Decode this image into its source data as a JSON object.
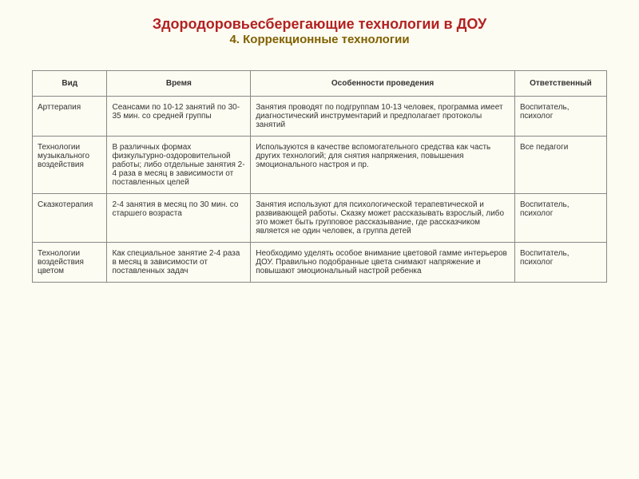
{
  "header": {
    "title": "Здородоровьесберегающие технологии в ДОУ",
    "subtitle": "4. Коррекционные технологии"
  },
  "table": {
    "columns": [
      "Вид",
      "Время",
      "Особенности проведения",
      "Ответственный"
    ],
    "rows": [
      {
        "vid": "Арттерапия",
        "time": "Сеансами по 10-12 занятий по 30-35 мин. со средней группы",
        "feat": "Занятия проводят по подгруппам 10-13 человек, программа имеет диагностический инструментарий и предполагает протоколы занятий",
        "resp": "Воспитатель, психолог"
      },
      {
        "vid": "Технологии музыкального воздействия",
        "time": "В различных формах физкультурно-оздоровительной работы; либо отдельные занятия 2-4 раза в месяц в зависимости от поставленных целей",
        "feat": "Используются в качестве вспомогательного средства как часть других технологий; для снятия напряжения, повышения эмоционального настроя и пр.",
        "resp": "Все педагоги"
      },
      {
        "vid": "Сказкотерапия",
        "time": "2-4 занятия в месяц по 30 мин. со старшего возраста",
        "feat": "Занятия используют для психологической терапевтической и развивающей работы. Сказку может рассказывать взрослый, либо это может быть групповое рассказывание, где рассказчиком является не один человек, а группа детей",
        "resp": "Воспитатель, психолог"
      },
      {
        "vid": "Технологии воздействия цветом",
        "time": "Как специальное занятие 2-4 раза в месяц в зависимости от поставленных задач",
        "feat": "Необходимо уделять особое внимание цветовой гамме интерьеров ДОУ. Правильно подобранные цвета снимают напряжение и повышают эмоциональный настрой ребенка",
        "resp": "Воспитатель, психолог"
      }
    ]
  }
}
